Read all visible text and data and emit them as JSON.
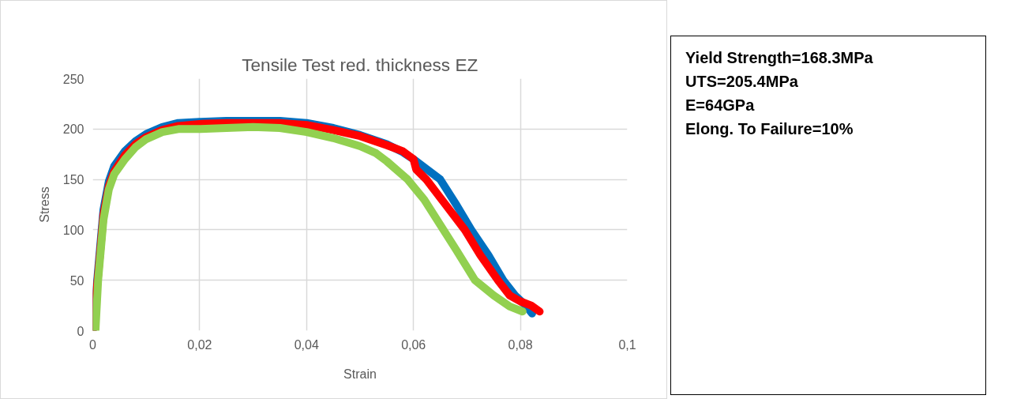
{
  "chart_data": {
    "type": "line",
    "title": "Tensile Test red. thickness EZ",
    "xlabel": "Strain",
    "ylabel": "Stress",
    "xlim": [
      0,
      0.1
    ],
    "ylim": [
      0,
      250
    ],
    "xticks": [
      0,
      {
        "value": 0.02,
        "label": "0,02"
      },
      {
        "value": 0.04,
        "label": "0,04"
      },
      {
        "value": 0.06,
        "label": "0,06"
      },
      {
        "value": 0.08,
        "label": "0,08"
      },
      {
        "value": 0.1,
        "label": "0,1"
      }
    ],
    "yticks": [
      0,
      50,
      100,
      150,
      200,
      250
    ],
    "grid": true,
    "marker": "none",
    "line_style": "solid",
    "series": [
      {
        "color": "#0070c0",
        "x": [
          0,
          0.001,
          0.002,
          0.003,
          0.004,
          0.006,
          0.008,
          0.01,
          0.013,
          0.016,
          0.02,
          0.025,
          0.03,
          0.035,
          0.04,
          0.045,
          0.05,
          0.055,
          0.058,
          0.06,
          0.0625,
          0.065,
          0.068,
          0.0708,
          0.074,
          0.0768,
          0.079,
          0.081,
          0.0822
        ],
        "values": [
          0,
          60,
          120,
          148,
          163,
          178,
          188,
          195,
          202,
          206,
          207,
          208,
          208,
          208,
          206,
          201,
          194,
          185,
          177,
          170,
          160,
          150,
          125,
          100,
          75,
          50,
          35,
          25,
          17
        ]
      },
      {
        "color": "#ff0000",
        "x": [
          0,
          0.001,
          0.002,
          0.003,
          0.004,
          0.006,
          0.008,
          0.01,
          0.013,
          0.016,
          0.02,
          0.025,
          0.03,
          0.035,
          0.04,
          0.045,
          0.05,
          0.055,
          0.058,
          0.06,
          0.0605,
          0.0624,
          0.066,
          0.0696,
          0.0725,
          0.0758,
          0.078,
          0.08,
          0.082,
          0.0836
        ],
        "values": [
          0,
          55,
          115,
          143,
          158,
          174,
          185,
          192,
          199,
          203,
          205,
          206,
          206,
          206,
          204,
          199,
          193,
          184,
          178,
          170,
          160,
          150,
          125,
          100,
          75,
          50,
          35,
          29,
          25,
          19
        ]
      },
      {
        "color": "#92d050",
        "x": [
          0.0005,
          0.001,
          0.002,
          0.003,
          0.004,
          0.006,
          0.008,
          0.01,
          0.013,
          0.016,
          0.02,
          0.025,
          0.03,
          0.035,
          0.04,
          0.045,
          0.05,
          0.053,
          0.055,
          0.0589,
          0.062,
          0.0656,
          0.068,
          0.0715,
          0.075,
          0.078,
          0.0804
        ],
        "values": [
          0,
          50,
          110,
          140,
          155,
          170,
          182,
          190,
          197,
          200,
          200,
          201,
          202,
          201,
          197,
          191,
          183,
          176,
          168,
          150,
          130,
          100,
          80,
          50,
          35,
          24,
          19
        ]
      }
    ],
    "annotations": [
      "Yield Strength=168.3MPa",
      "UTS=205.4MPa",
      "E=64GPa",
      "Elong. To Failure=10%"
    ]
  }
}
